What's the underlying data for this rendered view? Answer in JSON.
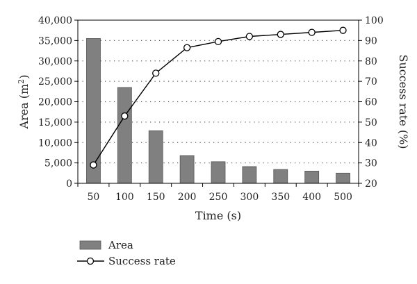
{
  "chart_data": {
    "type": "bar",
    "title": "",
    "categories": [
      "50",
      "100",
      "150",
      "200",
      "250",
      "300",
      "350",
      "400",
      "500"
    ],
    "xlabel": "Time (s)",
    "series": [
      {
        "name": "Area",
        "type": "bar",
        "axis": "left",
        "values": [
          35500,
          23500,
          12900,
          6800,
          5300,
          4100,
          3400,
          3000,
          2500
        ]
      },
      {
        "name": "Success rate",
        "type": "line",
        "axis": "right",
        "values": [
          29,
          53,
          74,
          86.5,
          89.5,
          92,
          93,
          94,
          95
        ]
      }
    ],
    "y_left": {
      "label_base": "Area (m",
      "label_sup": "2",
      "label_close": ")",
      "ylim": [
        0,
        40000
      ],
      "ticks": [
        "0",
        "5,000",
        "10,000",
        "15,000",
        "20,000",
        "25,000",
        "30,000",
        "35,000",
        "40,000"
      ]
    },
    "y_right": {
      "label": "Success rate (%)",
      "ylim": [
        20,
        100
      ],
      "ticks": [
        "20",
        "30",
        "40",
        "50",
        "60",
        "70",
        "80",
        "90",
        "100"
      ]
    },
    "grid": "horizontal dotted",
    "legend": {
      "placement": "bottom-left",
      "items": [
        "Area",
        "Success rate"
      ]
    },
    "colors": {
      "bar_fill": "#808080",
      "bar_stroke": "#555555",
      "line": "#000000",
      "marker_fill": "#ffffff",
      "grid": "#555555"
    }
  }
}
